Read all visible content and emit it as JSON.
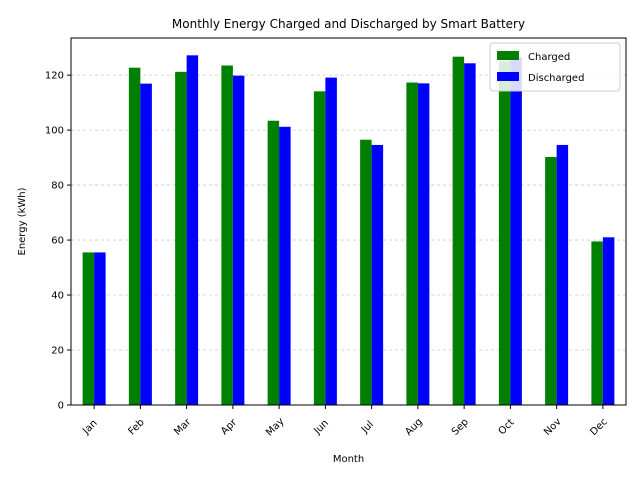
{
  "chart_data": {
    "type": "bar",
    "title": "Monthly Energy Charged and Discharged by Smart Battery",
    "xlabel": "Month",
    "ylabel": "Energy (kWh)",
    "categories": [
      "Jan",
      "Feb",
      "Mar",
      "Apr",
      "May",
      "Jun",
      "Jul",
      "Aug",
      "Sep",
      "Oct",
      "Nov",
      "Dec"
    ],
    "series": [
      {
        "name": "Charged",
        "color": "#008000",
        "values": [
          55.5,
          122.7,
          121.2,
          123.5,
          103.4,
          114.1,
          96.5,
          117.3,
          126.7,
          125.0,
          90.2,
          59.5
        ]
      },
      {
        "name": "Discharged",
        "color": "#0000ff",
        "values": [
          55.5,
          116.9,
          127.2,
          119.8,
          101.2,
          119.1,
          94.6,
          117.0,
          124.3,
          126.5,
          94.6,
          61.0
        ]
      }
    ],
    "ylim": [
      0,
      133.5
    ],
    "yticks": [
      0,
      20,
      40,
      60,
      80,
      100,
      120
    ],
    "grid": "y-dashed",
    "legend_position": "top-right",
    "x_tick_rotation": 45
  }
}
